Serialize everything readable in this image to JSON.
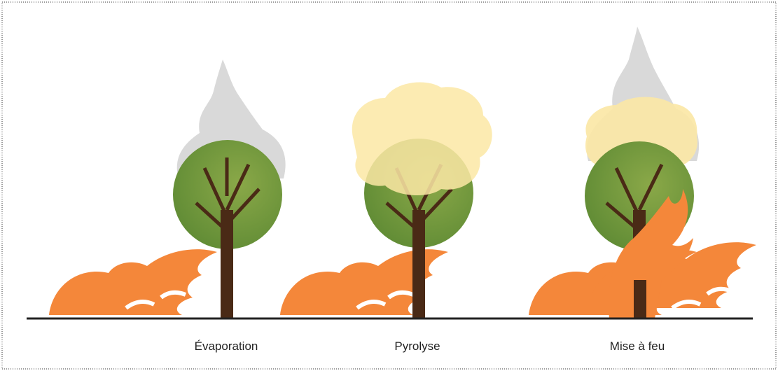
{
  "stages": [
    {
      "label": "Évaporation"
    },
    {
      "label": "Pyrolyse"
    },
    {
      "label": "Mise à feu"
    }
  ]
}
